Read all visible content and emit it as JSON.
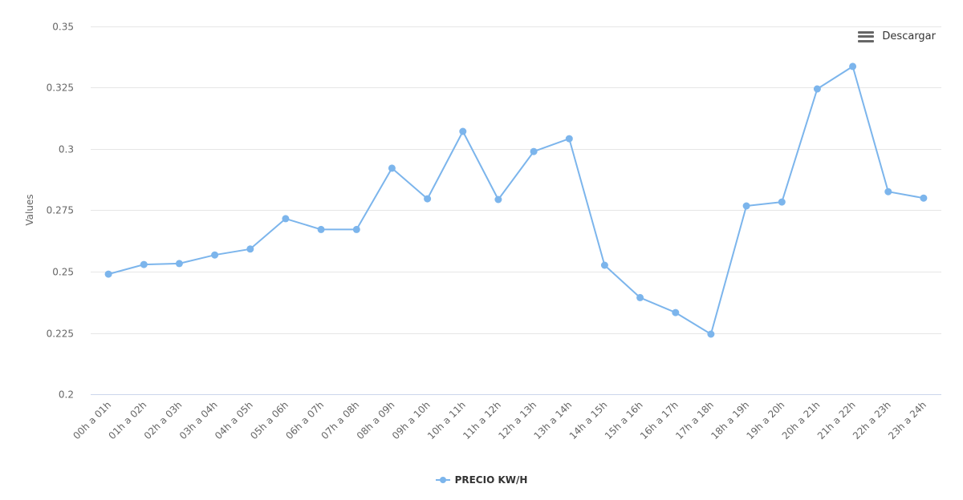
{
  "toolbar": {
    "download_label": "Descargar",
    "download_icon": "hamburger-menu-icon"
  },
  "legend": {
    "items": [
      {
        "label": "PRECIO KW/H",
        "color": "#7cb5ec"
      }
    ]
  },
  "colors": {
    "series": "#7cb5ec",
    "grid": "#e6e6e6",
    "axis_line": "#ccd6eb",
    "tick_text": "#666666"
  },
  "chart_data": {
    "type": "line",
    "title": "",
    "xlabel": "",
    "ylabel": "Values",
    "ylim": [
      0.2,
      0.35
    ],
    "yticks": [
      0.2,
      0.225,
      0.25,
      0.275,
      0.3,
      0.325,
      0.35
    ],
    "ytick_labels": [
      "0.2",
      "0.225",
      "0.25",
      "0.275",
      "0.3",
      "0.325",
      "0.35"
    ],
    "grid": true,
    "legend_position": "bottom",
    "categories": [
      "00h a 01h",
      "01h a 02h",
      "02h a 03h",
      "03h a 04h",
      "04h a 05h",
      "05h a 06h",
      "06h a 07h",
      "07h a 08h",
      "08h a 09h",
      "09h a 10h",
      "10h a 11h",
      "11h a 12h",
      "12h a 13h",
      "13h a 14h",
      "14h a 15h",
      "15h a 16h",
      "16h a 17h",
      "17h a 18h",
      "18h a 19h",
      "19h a 20h",
      "20h a 21h",
      "21h a 22h",
      "22h a 23h",
      "23h a 24h"
    ],
    "series": [
      {
        "name": "PRECIO KW/H",
        "values": [
          0.249,
          0.2529,
          0.2533,
          0.2568,
          0.2592,
          0.2716,
          0.2672,
          0.2672,
          0.2922,
          0.2797,
          0.3072,
          0.2794,
          0.299,
          0.3042,
          0.2526,
          0.2394,
          0.2333,
          0.2245,
          0.2768,
          0.2784,
          0.3245,
          0.3337,
          0.2826,
          0.28
        ]
      }
    ]
  }
}
